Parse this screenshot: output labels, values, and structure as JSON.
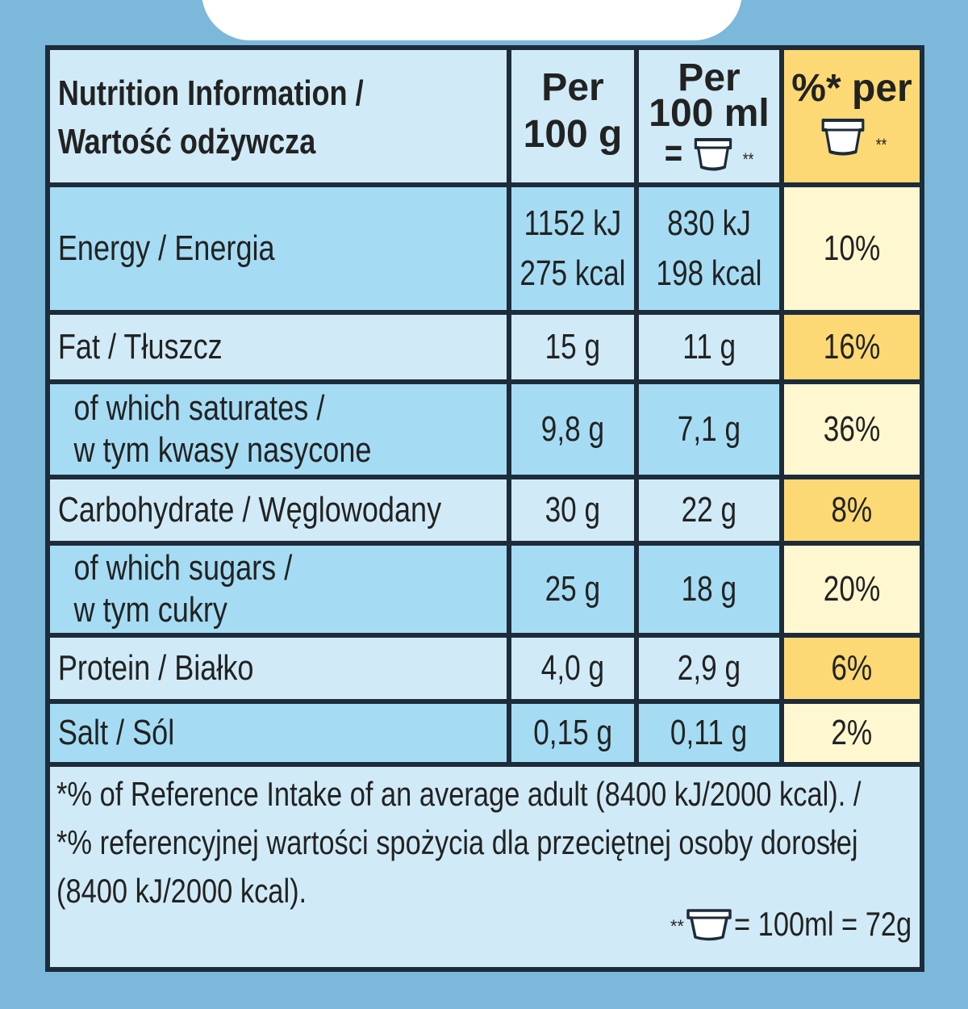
{
  "header": {
    "title_line1": "Nutrition Information /",
    "title_line2": "Wartość odżywcza",
    "col1_line1": "Per",
    "col1_line2": "100 g",
    "col2_line1": "Per",
    "col2_line2": "100 ml",
    "col2_equals": "=",
    "col2_asterisks": "**",
    "col3_label": "%* per",
    "col3_asterisks": "**"
  },
  "rows": [
    {
      "label": "Energy / Energia",
      "per100g_line1": "1152 kJ",
      "per100g_line2": "275 kcal",
      "per_portion_line1": "830 kJ",
      "per_portion_line2": "198 kcal",
      "ri": "10%"
    },
    {
      "label": "Fat / Tłuszcz",
      "per100g": "15 g",
      "per_portion": "11 g",
      "ri": "16%"
    },
    {
      "label_line1": "of which saturates /",
      "label_line2": "w tym kwasy nasycone",
      "per100g": "9,8 g",
      "per_portion": "7,1 g",
      "ri": "36%"
    },
    {
      "label": "Carbohydrate / Węglowodany",
      "per100g": "30 g",
      "per_portion": "22 g",
      "ri": "8%"
    },
    {
      "label_line1": "of which sugars /",
      "label_line2": "w tym cukry",
      "per100g": "25 g",
      "per_portion": "18 g",
      "ri": "20%"
    },
    {
      "label": "Protein / Białko",
      "per100g": "4,0 g",
      "per_portion": "2,9 g",
      "ri": "6%"
    },
    {
      "label": "Salt / Sól",
      "per100g": "0,15 g",
      "per_portion": "0,11 g",
      "ri": "2%"
    }
  ],
  "footnote": {
    "line1": "*% of Reference Intake of an average adult (8400 kJ/2000 kcal). /",
    "line2": "*% referencyjnej wartości spożycia dla przeciętnej osoby dorosłej",
    "line3": "(8400 kJ/2000 kcal).",
    "portion_asterisks": "**",
    "portion_text": "= 100ml = 72g"
  },
  "colors": {
    "background": "#7bb8d9",
    "border": "#1d2b3a",
    "row_light": "#d0ebf7",
    "row_blue": "#a5dcf3",
    "highlight_light": "#fef7d0",
    "highlight_dark": "#fcd974"
  },
  "icons": [
    "tub-icon"
  ]
}
